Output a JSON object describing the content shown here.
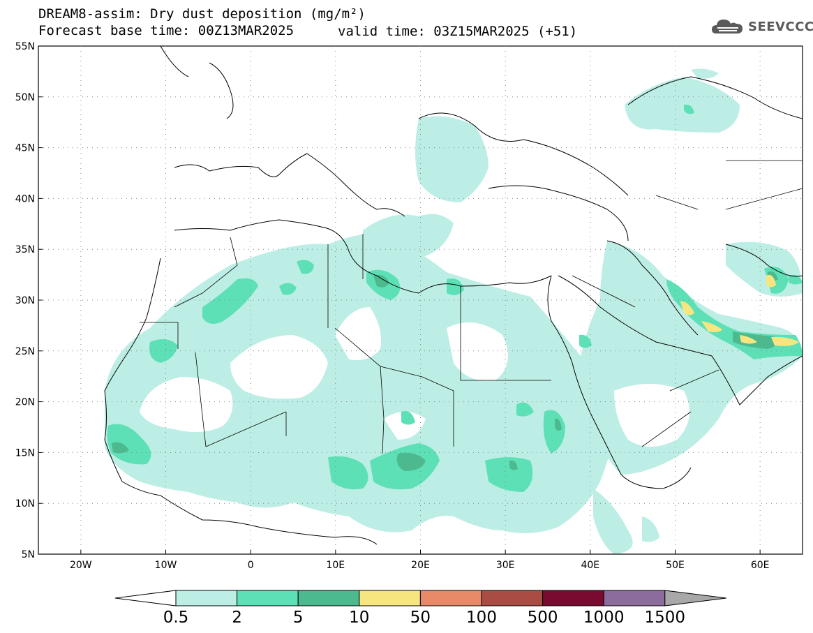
{
  "header": {
    "title_line1": "DREAM8-assim: Dry dust deposition (mg/m²)",
    "title_line2_left": "Forecast base time: 00Z13MAR2025",
    "title_line2_right": "valid time: 03Z15MAR2025 (+51)",
    "logo_text": "SEEVCCC",
    "logo_icon": "cloud-logo-icon"
  },
  "map": {
    "lon_range": [
      -25,
      65
    ],
    "lat_range": [
      5,
      55
    ],
    "lat_ticks": [
      {
        "lat": 55,
        "label": "55N"
      },
      {
        "lat": 50,
        "label": "50N"
      },
      {
        "lat": 45,
        "label": "45N"
      },
      {
        "lat": 40,
        "label": "40N"
      },
      {
        "lat": 35,
        "label": "35N"
      },
      {
        "lat": 30,
        "label": "30N"
      },
      {
        "lat": 25,
        "label": "25N"
      },
      {
        "lat": 20,
        "label": "20N"
      },
      {
        "lat": 15,
        "label": "15N"
      },
      {
        "lat": 10,
        "label": "10N"
      },
      {
        "lat": 5,
        "label": "5N"
      }
    ],
    "lon_ticks": [
      {
        "lon": -20,
        "label": "20W"
      },
      {
        "lon": -10,
        "label": "10W"
      },
      {
        "lon": 0,
        "label": "0"
      },
      {
        "lon": 10,
        "label": "10E"
      },
      {
        "lon": 20,
        "label": "20E"
      },
      {
        "lon": 30,
        "label": "30E"
      },
      {
        "lon": 40,
        "label": "40E"
      },
      {
        "lon": 50,
        "label": "50E"
      },
      {
        "lon": 60,
        "label": "60E"
      }
    ],
    "grid": "dotted",
    "colors": {
      "land_line": "#000000",
      "level_0_5": "#bdeee6",
      "level_2": "#5ee0b6",
      "level_5": "#4cb98e",
      "level_10": "#f7e680",
      "level_50": "#e88a68"
    }
  },
  "colorbar": {
    "labels": [
      "0.5",
      "2",
      "5",
      "10",
      "50",
      "100",
      "500",
      "1000",
      "1500"
    ],
    "colors": [
      "#bdeee6",
      "#5ee0b6",
      "#4cb98e",
      "#f7e680",
      "#e88a68",
      "#a94c43",
      "#7a0b30",
      "#8c6b9d",
      "#a8a8a8"
    ],
    "under_color": "#ffffff",
    "over_color": "#a8a8a8"
  }
}
